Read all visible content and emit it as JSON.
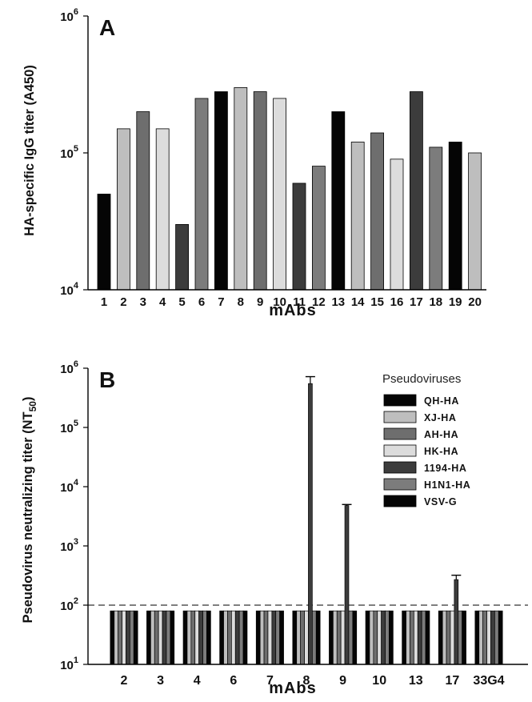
{
  "chart_data": [
    {
      "panel": "A",
      "type": "bar",
      "ylabel": "HA-specific IgG titer (A450)",
      "xlabel": "mAbs",
      "yscale": "log",
      "ylim": [
        10000,
        1000000
      ],
      "ytick_values": [
        10000,
        100000,
        1000000
      ],
      "ytick_labels": [
        {
          "base": "10",
          "exp": "4"
        },
        {
          "base": "10",
          "exp": "5"
        },
        {
          "base": "10",
          "exp": "6"
        }
      ],
      "categories": [
        "1",
        "2",
        "3",
        "4",
        "5",
        "6",
        "7",
        "8",
        "9",
        "10",
        "11",
        "12",
        "13",
        "14",
        "15",
        "16",
        "17",
        "18",
        "19",
        "20"
      ],
      "values": [
        50000,
        150000,
        200000,
        150000,
        30000,
        250000,
        280000,
        300000,
        280000,
        250000,
        60000,
        80000,
        200000,
        120000,
        140000,
        90000,
        280000,
        110000,
        120000,
        100000
      ],
      "colors": [
        "#050505",
        "#bebebe",
        "#6e6e6e",
        "#dcdcdc",
        "#3c3c3c",
        "#7c7c7c",
        "#050505",
        "#bebebe",
        "#6e6e6e",
        "#dcdcdc",
        "#3c3c3c",
        "#7c7c7c",
        "#050505",
        "#bebebe",
        "#6e6e6e",
        "#dcdcdc",
        "#3c3c3c",
        "#7c7c7c",
        "#050505",
        "#bebebe"
      ],
      "grid": false
    },
    {
      "panel": "B",
      "type": "bar",
      "ylabel": "Pseudovirus neutralizing titer (NT",
      "ylabel_sub": "50",
      "ylabel_end": ")",
      "xlabel": "mAbs",
      "yscale": "log",
      "ylim": [
        10,
        1000000
      ],
      "ytick_values": [
        10,
        100,
        1000,
        10000,
        100000,
        1000000
      ],
      "ytick_labels": [
        {
          "base": "10",
          "exp": "1"
        },
        {
          "base": "10",
          "exp": "2"
        },
        {
          "base": "10",
          "exp": "3"
        },
        {
          "base": "10",
          "exp": "4"
        },
        {
          "base": "10",
          "exp": "5"
        },
        {
          "base": "10",
          "exp": "6"
        }
      ],
      "categories": [
        "2",
        "3",
        "4",
        "6",
        "7",
        "8",
        "9",
        "10",
        "13",
        "17",
        "33G4"
      ],
      "threshold": 100,
      "legend_title": "Pseudoviruses",
      "legend_position": "top-right",
      "series": [
        {
          "name": "QH-HA",
          "color": "#050505",
          "values": [
            80,
            80,
            80,
            80,
            80,
            80,
            80,
            80,
            80,
            80,
            80
          ]
        },
        {
          "name": "XJ-HA",
          "color": "#bebebe",
          "values": [
            80,
            80,
            80,
            80,
            80,
            80,
            80,
            80,
            80,
            80,
            80
          ]
        },
        {
          "name": "AH-HA",
          "color": "#6e6e6e",
          "values": [
            80,
            80,
            80,
            80,
            80,
            80,
            80,
            80,
            80,
            80,
            80
          ]
        },
        {
          "name": "HK-HA",
          "color": "#dcdcdc",
          "values": [
            80,
            80,
            80,
            80,
            80,
            80,
            80,
            80,
            80,
            80,
            80
          ]
        },
        {
          "name": "1194-HA",
          "color": "#3c3c3c",
          "values": [
            80,
            80,
            80,
            80,
            80,
            550000,
            4800,
            80,
            80,
            270,
            80
          ],
          "error_upper": [
            null,
            null,
            null,
            null,
            null,
            720000,
            5000,
            null,
            null,
            320,
            null
          ]
        },
        {
          "name": "H1N1-HA",
          "color": "#7c7c7c",
          "values": [
            80,
            80,
            80,
            80,
            80,
            80,
            80,
            80,
            80,
            80,
            80
          ]
        },
        {
          "name": "VSV-G",
          "color": "#050505",
          "values": [
            80,
            80,
            80,
            80,
            80,
            80,
            80,
            80,
            80,
            80,
            80
          ]
        }
      ],
      "grid": false
    }
  ]
}
